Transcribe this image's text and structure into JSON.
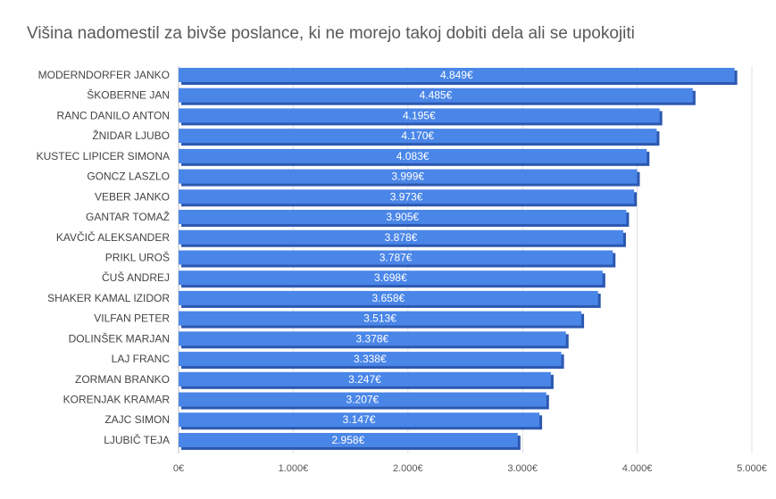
{
  "chart_data": {
    "type": "bar",
    "orientation": "horizontal",
    "title": "Višina nadomestil za bivše poslance, ki ne morejo takoj dobiti dela ali se upokojiti",
    "categories": [
      "MODERNDORFER JANKO",
      "ŠKOBERNE JAN",
      "RANC DANILO ANTON",
      "ŽNIDAR LJUBO",
      "KUSTEC LIPICER SIMONA",
      "GONCZ LASZLO",
      "VEBER JANKO",
      "GANTAR TOMAŽ",
      "KAVČIČ ALEKSANDER",
      "PRIKL UROŠ",
      "ČUŠ ANDREJ",
      "SHAKER KAMAL IZIDOR",
      "VILFAN PETER",
      "DOLINŠEK MARJAN",
      "LAJ FRANC",
      "ZORMAN BRANKO",
      "KORENJAK KRAMAR",
      "ZAJC SIMON",
      "LJUBIČ TEJA"
    ],
    "values": [
      4849,
      4485,
      4195,
      4170,
      4083,
      3999,
      3973,
      3905,
      3878,
      3787,
      3698,
      3658,
      3513,
      3378,
      3338,
      3247,
      3207,
      3147,
      2958
    ],
    "value_labels": [
      "4.849€",
      "4.485€",
      "4.195€",
      "4.170€",
      "4.083€",
      "3.999€",
      "3.973€",
      "3.905€",
      "3.878€",
      "3.787€",
      "3.698€",
      "3.658€",
      "3.513€",
      "3.378€",
      "3.338€",
      "3.247€",
      "3.207€",
      "3.147€",
      "2.958€"
    ],
    "xlim": [
      0,
      5000
    ],
    "xticks": [
      0,
      1000,
      2000,
      3000,
      4000,
      5000
    ],
    "xtick_labels": [
      "0€",
      "1.000€",
      "2.000€",
      "3.000€",
      "4.000€",
      "5.000€"
    ],
    "grid": true,
    "colors": {
      "bar": "#4a86e8",
      "bar_shadow": "#2c58b0",
      "grid": "#e0e0e0"
    }
  }
}
